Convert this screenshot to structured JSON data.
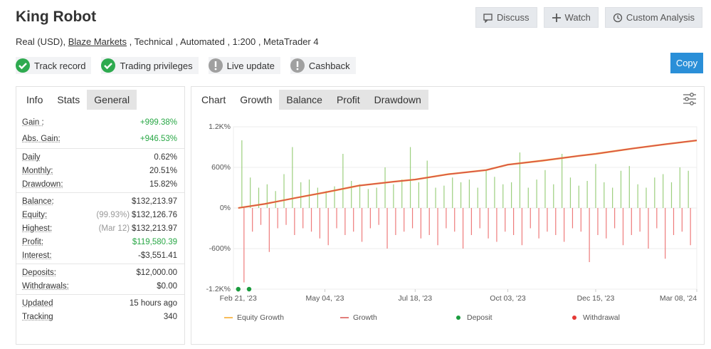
{
  "header": {
    "title": "King Robot",
    "details_prefix": "Real (USD), ",
    "broker": "Blaze Markets",
    "details_suffix": " , Technical , Automated , 1:200 , MetaTrader 4",
    "buttons": [
      "Discuss",
      "Watch",
      "Custom Analysis"
    ],
    "copy_button": "Copy"
  },
  "badges": [
    {
      "label": "Track record",
      "icon_color": "#2eaa4f"
    },
    {
      "label": "Trading privileges",
      "icon_color": "#2eaa4f"
    },
    {
      "label": "Live update",
      "icon_color": "#a0a0a0"
    },
    {
      "label": "Cashback",
      "icon_color": "#a0a0a0"
    }
  ],
  "info_panel": {
    "tabs": [
      "Info",
      "Stats",
      "General"
    ],
    "groups": [
      [
        {
          "label": "Gain :",
          "value": "+999.38%",
          "color": "#28a745"
        },
        {
          "label": "Abs. Gain:",
          "value": "+946.53%",
          "color": "#28a745"
        }
      ],
      [
        {
          "label": "Daily",
          "value": "0.62%"
        },
        {
          "label": "Monthly:",
          "value": "20.51%"
        },
        {
          "label": "Drawdown:",
          "value": "15.82%"
        }
      ],
      [
        {
          "label": "Balance:",
          "value": "$132,213.97"
        },
        {
          "label": "Equity:",
          "note": "(99.93%)",
          "value": "$132,126.76"
        },
        {
          "label": "Highest:",
          "note": "(Mar 12)",
          "value": "$132,213.97"
        },
        {
          "label": "Profit:",
          "value": "$119,580.39",
          "color": "#28a745"
        },
        {
          "label": "Interest:",
          "value": "-$3,551.41"
        }
      ],
      [
        {
          "label": "Deposits:",
          "value": "$12,000.00"
        },
        {
          "label": "Withdrawals:",
          "value": "$0.00"
        }
      ],
      [
        {
          "label": "Updated",
          "value": "15 hours ago"
        },
        {
          "label": "Tracking",
          "value": "340"
        }
      ]
    ]
  },
  "chart_panel": {
    "tabs": [
      "Chart",
      "Growth",
      "Balance",
      "Profit",
      "Drawdown"
    ]
  },
  "chart_data": {
    "type": "line",
    "x": [
      "2023-02-21",
      "2023-03-15",
      "2023-04-10",
      "2023-05-04",
      "2023-06-01",
      "2023-07-01",
      "2023-07-18",
      "2023-08-15",
      "2023-09-15",
      "2023-10-03",
      "2023-11-01",
      "2023-12-01",
      "2023-12-15",
      "2024-01-15",
      "2024-02-10",
      "2024-03-08"
    ],
    "series": [
      {
        "name": "Equity Growth",
        "color": "#f5a623",
        "values": [
          0,
          60,
          150,
          230,
          330,
          390,
          420,
          500,
          560,
          640,
          700,
          770,
          800,
          880,
          940,
          998.6
        ]
      },
      {
        "name": "Growth",
        "color": "#d9534f",
        "values": [
          0,
          60,
          150,
          230,
          330,
          390,
          420,
          500,
          560,
          640,
          700,
          770,
          800,
          880,
          940,
          999.38
        ]
      }
    ],
    "bars": {
      "x": [
        "2023-02-24",
        "2023-03-03",
        "2023-03-10",
        "2023-03-17",
        "2023-03-24",
        "2023-03-31",
        "2023-04-07",
        "2023-04-14",
        "2023-04-21",
        "2023-04-28",
        "2023-05-05",
        "2023-05-12",
        "2023-05-19",
        "2023-05-26",
        "2023-06-02",
        "2023-06-09",
        "2023-06-16",
        "2023-06-23",
        "2023-06-30",
        "2023-07-07",
        "2023-07-14",
        "2023-07-21",
        "2023-07-28",
        "2023-08-04",
        "2023-08-11",
        "2023-08-18",
        "2023-08-25",
        "2023-09-01",
        "2023-09-08",
        "2023-09-15",
        "2023-09-22",
        "2023-09-29",
        "2023-10-06",
        "2023-10-13",
        "2023-10-20",
        "2023-10-27",
        "2023-11-03",
        "2023-11-10",
        "2023-11-17",
        "2023-11-24",
        "2023-12-01",
        "2023-12-08",
        "2023-12-15",
        "2023-12-22",
        "2023-12-29",
        "2024-01-05",
        "2024-01-12",
        "2024-01-19",
        "2024-01-26",
        "2024-02-02",
        "2024-02-09",
        "2024-02-16",
        "2024-02-23",
        "2024-03-01"
      ],
      "series": [
        {
          "color": "#9ccf7e",
          "values": [
            1000,
            450,
            300,
            350,
            250,
            500,
            900,
            380,
            420,
            300,
            250,
            320,
            800,
            400,
            350,
            280,
            300,
            600,
            350,
            420,
            900,
            380,
            700,
            300,
            330,
            450,
            380,
            420,
            300,
            550,
            460,
            350,
            380,
            820,
            300,
            420,
            560,
            350,
            800,
            450,
            330,
            400,
            650,
            380,
            300,
            550,
            620,
            350,
            300,
            450,
            500,
            380,
            600,
            550
          ]
        },
        {
          "color": "#ee7b7b",
          "values": [
            -1100,
            -350,
            -250,
            -650,
            -300,
            -250,
            -400,
            -300,
            -350,
            -450,
            -550,
            -300,
            -400,
            -350,
            -500,
            -300,
            -250,
            -600,
            -400,
            -350,
            -300,
            -450,
            -400,
            -550,
            -300,
            -350,
            -600,
            -400,
            -300,
            -450,
            -500,
            -350,
            -400,
            -550,
            -300,
            -450,
            -350,
            -400,
            -500,
            -300,
            -350,
            -800,
            -400,
            -450,
            -300,
            -550,
            -400,
            -350,
            -600,
            -300,
            -750,
            -400,
            -350,
            -550
          ]
        }
      ]
    },
    "markers": [
      {
        "name": "Deposit",
        "color": "#1a9c3e",
        "x": [
          "2023-02-21",
          "2023-03-02"
        ]
      },
      {
        "name": "Withdrawal",
        "color": "#e53935",
        "x": []
      }
    ],
    "xlim": [
      "2023-02-17",
      "2024-03-08"
    ],
    "xticks": [
      {
        "value": "2023-02-21",
        "label": "Feb 21, '23"
      },
      {
        "value": "2023-05-04",
        "label": "May 04, '23"
      },
      {
        "value": "2023-07-18",
        "label": "Jul 18, '23"
      },
      {
        "value": "2023-10-03",
        "label": "Oct 03, '23"
      },
      {
        "value": "2023-12-15",
        "label": "Dec 15, '23"
      },
      {
        "value": "2024-03-08",
        "label": "Mar 08, '24"
      }
    ],
    "ylim": [
      -1200,
      1200
    ],
    "yticks": [
      {
        "value": 1200,
        "label": "1.2K%"
      },
      {
        "value": 600,
        "label": "600%"
      },
      {
        "value": 0,
        "label": "0%"
      },
      {
        "value": -600,
        "label": "-600%"
      },
      {
        "value": -1200,
        "label": "-1.2K%"
      }
    ],
    "grid": true
  }
}
